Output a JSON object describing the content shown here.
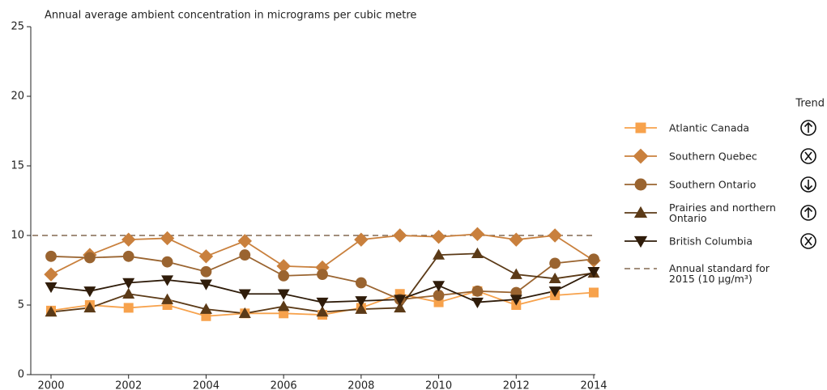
{
  "chart_data": {
    "type": "line",
    "title": "Annual average ambient concentration in micrograms per cubic metre",
    "legend_trend_header": "Trend",
    "x": [
      2000,
      2001,
      2002,
      2003,
      2004,
      2005,
      2006,
      2007,
      2008,
      2009,
      2010,
      2011,
      2012,
      2013,
      2014
    ],
    "xlim": [
      2000,
      2014
    ],
    "xticks": [
      2000,
      2002,
      2004,
      2006,
      2008,
      2010,
      2012,
      2014
    ],
    "ylim": [
      0,
      25
    ],
    "yticks": [
      0,
      5,
      10,
      15,
      20,
      25
    ],
    "series": [
      {
        "name": "Atlantic Canada",
        "color": "#f7a24c",
        "marker": "square",
        "values": [
          4.6,
          5.0,
          4.8,
          5.0,
          4.2,
          4.4,
          4.4,
          4.3,
          4.8,
          5.8,
          5.2,
          6.0,
          5.0,
          5.7,
          5.9
        ]
      },
      {
        "name": "Southern Quebec",
        "color": "#c9803d",
        "marker": "diamond",
        "values": [
          7.2,
          8.6,
          9.7,
          9.8,
          8.5,
          9.6,
          7.8,
          7.7,
          9.7,
          10.0,
          9.9,
          10.1,
          9.7,
          10.0,
          8.2
        ]
      },
      {
        "name": "Southern Ontario",
        "color": "#9a6430",
        "marker": "circle",
        "values": [
          8.5,
          8.4,
          8.5,
          8.1,
          7.4,
          8.6,
          7.1,
          7.2,
          6.6,
          5.4,
          5.7,
          6.0,
          5.9,
          8.0,
          8.3
        ]
      },
      {
        "name": "Prairies and northern Ontario",
        "color": "#5b3a17",
        "marker": "triangle-up",
        "values": [
          4.5,
          4.8,
          5.8,
          5.4,
          4.7,
          4.4,
          4.9,
          4.5,
          4.7,
          4.8,
          8.6,
          8.7,
          7.2,
          6.9,
          7.3
        ]
      },
      {
        "name": "British Columbia",
        "color": "#2f1c0a",
        "marker": "triangle-down",
        "values": [
          6.3,
          6.0,
          6.6,
          6.8,
          6.5,
          5.8,
          5.8,
          5.2,
          5.3,
          5.4,
          6.4,
          5.2,
          5.4,
          6.0,
          7.4
        ]
      }
    ],
    "reference_line": {
      "value": 10,
      "label": "Annual standard for 2015 (10 µg/m³)",
      "color": "#6b4a2e"
    }
  }
}
